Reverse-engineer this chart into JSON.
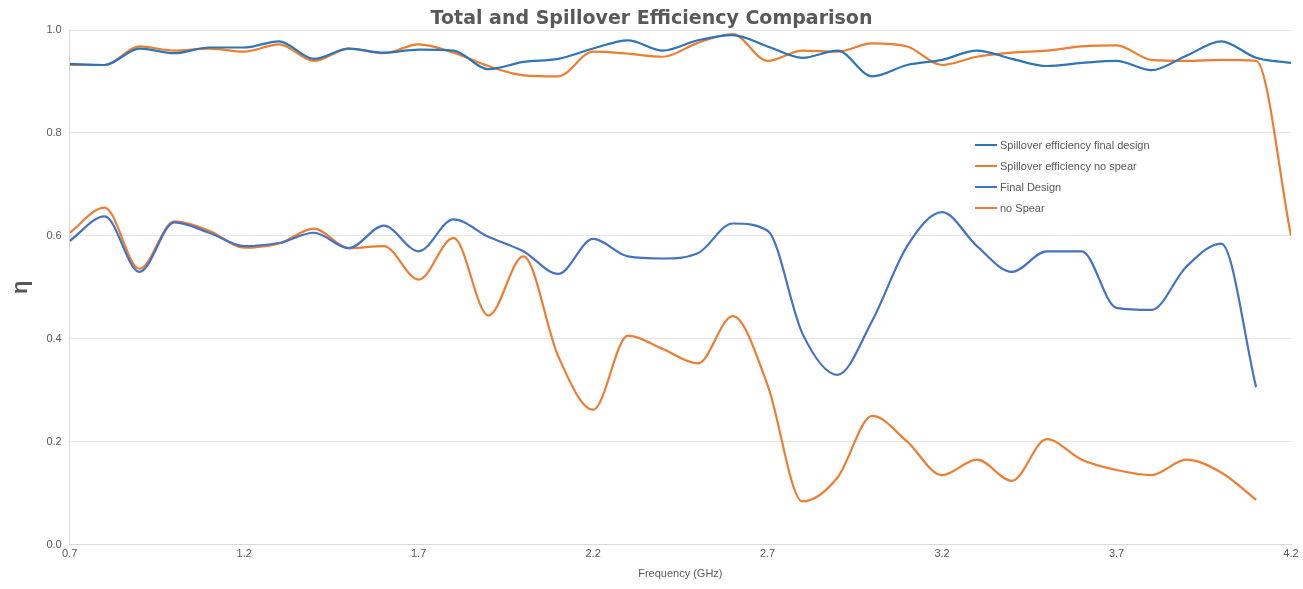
{
  "chart_data": {
    "type": "line",
    "title": "Total and Spillover Efficiency Comparison",
    "xlabel": "Frequency (GHz)",
    "ylabel": "η",
    "x": [
      0.7,
      0.8,
      0.9,
      1.0,
      1.1,
      1.2,
      1.3,
      1.4,
      1.5,
      1.6,
      1.7,
      1.8,
      1.9,
      2.0,
      2.1,
      2.2,
      2.3,
      2.4,
      2.5,
      2.6,
      2.7,
      2.8,
      2.9,
      3.0,
      3.1,
      3.2,
      3.3,
      3.4,
      3.5,
      3.6,
      3.7,
      3.8,
      3.9,
      4.0,
      4.1,
      4.2
    ],
    "series": [
      {
        "name": "Spillover efficiency final design",
        "color": "#2e75b6",
        "values": [
          0.934,
          0.932,
          0.964,
          0.955,
          0.966,
          0.966,
          0.978,
          0.944,
          0.964,
          0.956,
          0.962,
          0.96,
          0.924,
          0.938,
          0.944,
          0.964,
          0.98,
          0.96,
          0.98,
          0.99,
          0.968,
          0.946,
          0.96,
          0.91,
          0.932,
          0.942,
          0.96,
          0.944,
          0.93,
          0.936,
          0.94,
          0.922,
          0.95,
          0.978,
          0.946,
          0.936
        ]
      },
      {
        "name": "Spillover efficiency no spear",
        "color": "#ed7d31",
        "values": [
          0.932,
          0.932,
          0.968,
          0.96,
          0.964,
          0.958,
          0.972,
          0.94,
          0.964,
          0.955,
          0.972,
          0.956,
          0.93,
          0.912,
          0.91,
          0.958,
          0.954,
          0.948,
          0.975,
          0.992,
          0.94,
          0.96,
          0.958,
          0.974,
          0.968,
          0.932,
          0.948,
          0.956,
          0.96,
          0.968,
          0.97,
          0.942,
          0.94,
          0.942,
          0.94,
          0.6
        ]
      },
      {
        "name": "Final Design",
        "color": "#4472c4",
        "values": [
          0.59,
          0.638,
          0.53,
          0.626,
          0.606,
          0.58,
          0.586,
          0.606,
          0.576,
          0.62,
          0.57,
          0.632,
          0.598,
          0.57,
          0.526,
          0.594,
          0.56,
          0.556,
          0.566,
          0.624,
          0.61,
          0.41,
          0.33,
          0.435,
          0.58,
          0.646,
          0.58,
          0.53,
          0.57,
          0.57,
          0.46,
          0.456,
          0.54,
          0.585,
          0.306,
          null
        ]
      },
      {
        "name": "no Spear",
        "color": "#ed7d31",
        "values": [
          0.606,
          0.655,
          0.536,
          0.628,
          0.61,
          0.577,
          0.585,
          0.614,
          0.576,
          0.58,
          0.515,
          0.596,
          0.445,
          0.56,
          0.366,
          0.262,
          0.406,
          0.38,
          0.352,
          0.444,
          0.31,
          0.084,
          0.13,
          0.25,
          0.2,
          0.135,
          0.165,
          0.124,
          0.205,
          0.165,
          0.145,
          0.135,
          0.165,
          0.14,
          0.087,
          null
        ]
      }
    ],
    "xlim": [
      0.7,
      4.2
    ],
    "xticks": [
      0.7,
      1.2,
      1.7,
      2.2,
      2.7,
      3.2,
      3.7,
      4.2
    ],
    "ylim": [
      0,
      1
    ],
    "yticks": [
      {
        "value": 0,
        "label": "0.0"
      },
      {
        "value": 0.2,
        "label": "0.2"
      },
      {
        "value": 0.4,
        "label": "0.4"
      },
      {
        "value": 0.6,
        "label": "0.6"
      },
      {
        "value": 0.8,
        "label": "0.8"
      },
      {
        "value": 1,
        "label": "1.0"
      }
    ],
    "grid": "y",
    "legend": "right",
    "marker": "none",
    "line_style": "solid"
  }
}
